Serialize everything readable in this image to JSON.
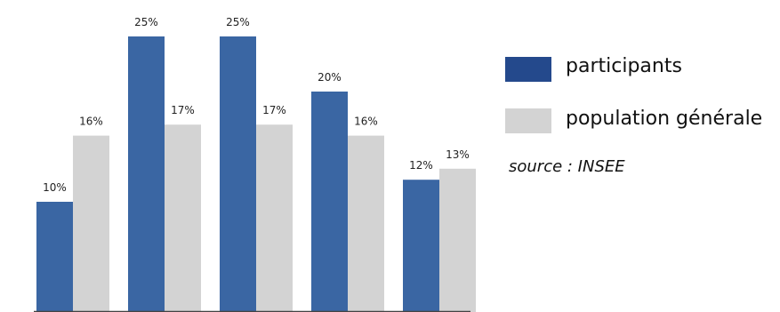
{
  "chart_data": {
    "type": "bar",
    "categories": [
      "",
      "",
      "",
      "",
      ""
    ],
    "series": [
      {
        "name": "participants",
        "color": "#3a66a3",
        "values": [
          10,
          25,
          25,
          20,
          12
        ]
      },
      {
        "name": "population générale",
        "color": "#d3d3d3",
        "values": [
          16,
          17,
          17,
          16,
          13
        ]
      }
    ],
    "value_suffix": "%",
    "ylim": [
      0,
      25
    ],
    "grid": false,
    "legend": "right",
    "title": "",
    "xlabel": "",
    "ylabel": ""
  },
  "legend": {
    "items": [
      {
        "label": "participants",
        "color": "#24498c"
      },
      {
        "label": "population générale",
        "color": "#d3d3d3"
      }
    ]
  },
  "source": "source : INSEE"
}
